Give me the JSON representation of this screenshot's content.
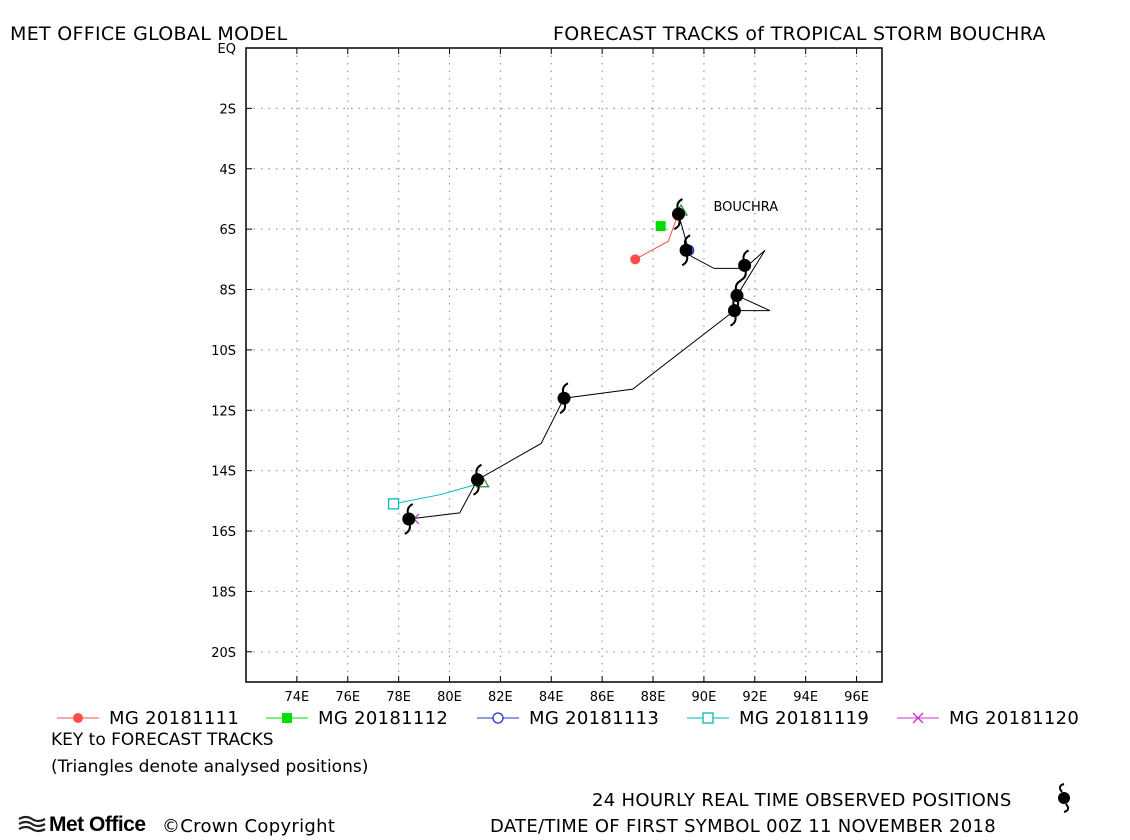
{
  "header": {
    "left_title": "MET OFFICE GLOBAL MODEL",
    "right_title": "FORECAST TRACKS of TROPICAL STORM BOUCHRA"
  },
  "map": {
    "lon_range": [
      72,
      97
    ],
    "lat_range": [
      -21,
      0
    ],
    "lon_ticks": [
      "74E",
      "76E",
      "78E",
      "80E",
      "82E",
      "84E",
      "86E",
      "88E",
      "90E",
      "92E",
      "94E",
      "96E"
    ],
    "lat_ticks": [
      "EQ",
      "2S",
      "4S",
      "6S",
      "8S",
      "10S",
      "12S",
      "14S",
      "16S",
      "18S",
      "20S"
    ],
    "storm_label": "BOUCHRA",
    "grid": "dotted"
  },
  "chart_data": {
    "type": "map-track",
    "observed_track": {
      "name": "observed",
      "lons": [
        89.0,
        89.3,
        89.5,
        90.4,
        91.6,
        92.4,
        91.3,
        92.6,
        91.2,
        87.2,
        84.5,
        83.6,
        81.1,
        80.4,
        78.4
      ],
      "lats": [
        -5.5,
        -6.4,
        -6.9,
        -7.3,
        -7.3,
        -6.7,
        -8.2,
        -8.7,
        -8.7,
        -11.3,
        -11.6,
        -13.1,
        -14.3,
        -15.4,
        -15.6
      ]
    },
    "observed_symbols": {
      "lons": [
        89.0,
        89.3,
        91.6,
        91.3,
        91.2,
        84.5,
        81.1,
        78.4
      ],
      "lats": [
        -5.5,
        -6.7,
        -7.2,
        -8.2,
        -8.7,
        -11.6,
        -14.3,
        -15.6
      ]
    },
    "forecasts": [
      {
        "name": "MG 20181111",
        "color": "#ff4d4d",
        "marker": "filled-circle",
        "lons": [
          87.3,
          88.6,
          88.9,
          89.1
        ],
        "lats": [
          -7.0,
          -6.4,
          -5.7,
          -5.6
        ]
      },
      {
        "name": "MG 20181112",
        "color": "#00dd00",
        "marker": "filled-square",
        "lons": [
          88.3
        ],
        "lats": [
          -5.9
        ]
      },
      {
        "name": "MG 20181113",
        "color": "#2233cc",
        "marker": "open-circle",
        "lons": [
          89.4,
          89.6
        ],
        "lats": [
          -6.7,
          -6.8
        ]
      },
      {
        "name": "MG 20181119",
        "color": "#00bbbb",
        "marker": "open-square",
        "lons": [
          77.8,
          79.6,
          81.3
        ],
        "lats": [
          -15.1,
          -14.8,
          -14.4
        ]
      },
      {
        "name": "MG 20181120",
        "color": "#cc33cc",
        "marker": "cross",
        "lons": [
          78.6
        ],
        "lats": [
          -15.6
        ]
      }
    ],
    "analysed_positions": {
      "lons": [
        89.1,
        81.3
      ],
      "lats": [
        -5.4,
        -14.4
      ]
    }
  },
  "legend": {
    "items": [
      {
        "label": "MG 20181111",
        "color": "#ff4d4d",
        "marker": "filled-circle"
      },
      {
        "label": "MG 20181112",
        "color": "#00dd00",
        "marker": "filled-square"
      },
      {
        "label": "MG 20181113",
        "color": "#2233cc",
        "marker": "open-circle"
      },
      {
        "label": "MG 20181119",
        "color": "#00bbbb",
        "marker": "open-square"
      },
      {
        "label": "MG 20181120",
        "color": "#cc33cc",
        "marker": "cross"
      }
    ]
  },
  "notes": {
    "key_title": "KEY to FORECAST TRACKS",
    "triangles_note": "(Triangles denote analysed positions)",
    "observed_positions": "24 HOURLY REAL TIME OBSERVED POSITIONS",
    "first_symbol": "DATE/TIME OF FIRST SYMBOL 00Z 11 NOVEMBER 2018"
  },
  "footer": {
    "logo_text": "Met Office",
    "copyright": "©Crown Copyright"
  },
  "colors": {
    "observed_track": "#000000",
    "grid": "#999999"
  }
}
